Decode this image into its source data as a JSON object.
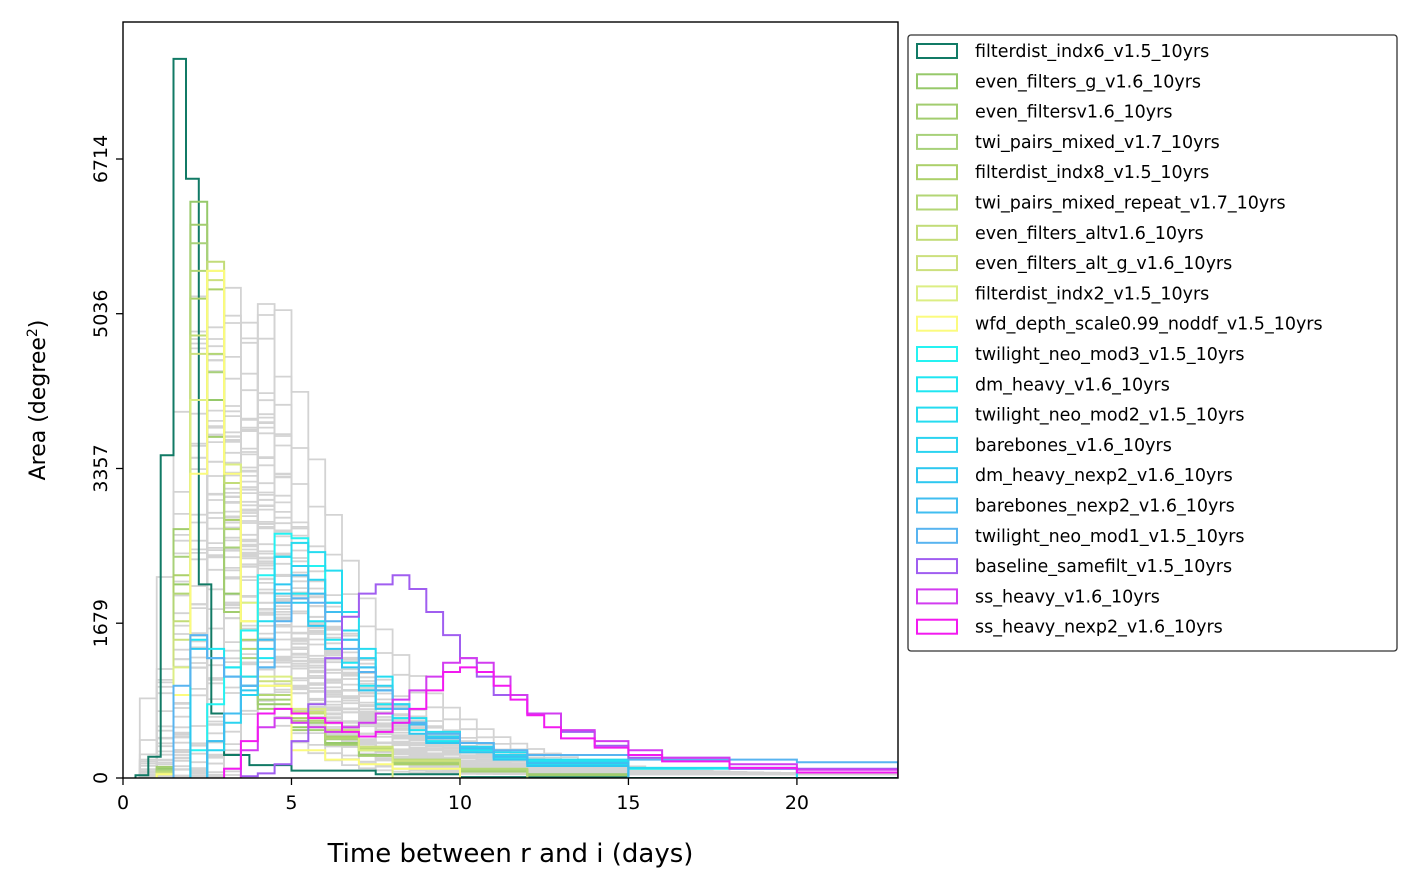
{
  "chart_data": {
    "type": "histogram",
    "xlabel": "Time between r and i (days)",
    "ylabel_main": "Area (degree",
    "ylabel_sup": "2",
    "ylabel_end": ")",
    "xlim": [
      0,
      23
    ],
    "ylim": [
      0,
      8200
    ],
    "xticks": [
      {
        "value": 0,
        "label": "0"
      },
      {
        "value": 5,
        "label": "5"
      },
      {
        "value": 10,
        "label": "10"
      },
      {
        "value": 15,
        "label": "15"
      },
      {
        "value": 20,
        "label": "20"
      }
    ],
    "yticks": [
      {
        "value": 0,
        "label": "0"
      },
      {
        "value": 1679,
        "label": "1679"
      },
      {
        "value": 3357,
        "label": "3357"
      },
      {
        "value": 5036,
        "label": "5036"
      },
      {
        "value": 6714,
        "label": "6714"
      }
    ],
    "grey_runs_note": "",
    "legend_position": "right, outside plot (upper)",
    "background_series_color": "#d3d3d3",
    "series": [
      {
        "name": "filterdist_indx6_v1.5_10yrs",
        "color": "#117a65",
        "edges": [
          0.37,
          0.75,
          1.12,
          1.5,
          1.87,
          2.25,
          2.62,
          3.0,
          3.75,
          5.0,
          7.5,
          10.0,
          15.0,
          23.0
        ],
        "values": [
          30,
          230,
          3500,
          7800,
          6500,
          2100,
          700,
          250,
          140,
          80,
          40,
          10,
          0
        ]
      },
      {
        "name": "even_filters_g_v1.6_10yrs",
        "color": "#96c96a",
        "edges": [
          1.0,
          1.5,
          2.0,
          2.5,
          3.0,
          3.5,
          4.0,
          5.0,
          6.0,
          7.0,
          8.0,
          10.0,
          12.0,
          15.0
        ],
        "values": [
          100,
          2100,
          6250,
          4100,
          2000,
          1100,
          800,
          550,
          380,
          250,
          160,
          80,
          40
        ]
      },
      {
        "name": "even_filtersv1.6_10yrs",
        "color": "#a2cd6f",
        "edges": [
          1.0,
          1.5,
          2.0,
          2.5,
          3.0,
          3.5,
          4.0,
          5.0,
          6.0,
          7.0,
          8.0,
          10.0,
          12.0,
          15.0
        ],
        "values": [
          120,
          2700,
          6000,
          3700,
          1800,
          1000,
          750,
          520,
          360,
          240,
          150,
          70,
          30
        ]
      },
      {
        "name": "twi_pairs_mixed_v1.7_10yrs",
        "color": "#a8d17a",
        "edges": [
          1.0,
          1.5,
          2.0,
          2.5,
          3.0,
          3.5,
          4.0,
          5.0,
          6.0,
          7.0,
          8.0,
          10.0,
          12.0
        ],
        "values": [
          80,
          2400,
          5800,
          4400,
          2500,
          1300,
          850,
          600,
          420,
          300,
          190,
          90
        ]
      },
      {
        "name": "filterdist_indx8_v1.5_10yrs",
        "color": "#acd06a",
        "edges": [
          1.0,
          1.5,
          2.0,
          2.5,
          3.0,
          3.5,
          4.0,
          5.0,
          6.0,
          7.0,
          8.0,
          10.0
        ],
        "values": [
          60,
          2200,
          5200,
          5300,
          2800,
          1500,
          900,
          650,
          450,
          300,
          150
        ]
      },
      {
        "name": "twi_pairs_mixed_repeat_v1.7_10yrs",
        "color": "#b3d675",
        "edges": [
          1.0,
          1.5,
          2.0,
          2.5,
          3.0,
          3.5,
          4.0,
          5.0,
          6.0,
          7.0,
          8.0,
          10.0,
          12.0
        ],
        "values": [
          70,
          2000,
          5500,
          4600,
          2700,
          1400,
          900,
          620,
          430,
          310,
          200,
          100
        ]
      },
      {
        "name": "even_filters_altv1.6_10yrs",
        "color": "#c2dc78",
        "edges": [
          1.0,
          1.5,
          2.0,
          2.5,
          3.0,
          3.5,
          4.0,
          5.0,
          6.0,
          7.0,
          8.0,
          10.0
        ],
        "values": [
          60,
          1700,
          4800,
          5600,
          3200,
          1600,
          1000,
          700,
          500,
          330,
          180
        ]
      },
      {
        "name": "even_filters_alt_g_v1.6_10yrs",
        "color": "#cce07e",
        "edges": [
          1.0,
          1.5,
          2.0,
          2.5,
          3.0,
          3.5,
          4.0,
          5.0,
          6.0,
          7.0,
          8.0,
          10.0
        ],
        "values": [
          50,
          1500,
          4600,
          5400,
          3400,
          1700,
          1050,
          720,
          520,
          340,
          190
        ]
      },
      {
        "name": "filterdist_indx2_v1.5_10yrs",
        "color": "#dcee84",
        "edges": [
          1.0,
          1.5,
          2.0,
          2.5,
          3.0,
          3.5,
          4.0,
          5.0,
          6.0,
          7.0,
          8.0
        ],
        "values": [
          40,
          1200,
          4100,
          5500,
          3400,
          1900,
          1100,
          750,
          500,
          300
        ]
      },
      {
        "name": "wfd_depth_scale0.99_noddf_v1.5_10yrs",
        "color": "#fbfb7e",
        "edges": [
          1.0,
          1.5,
          2.0,
          2.5,
          3.0,
          3.5,
          4.0,
          5.0,
          6.0,
          7.0,
          8.0,
          10.0
        ],
        "values": [
          40,
          900,
          3300,
          5500,
          3300,
          1700,
          1000,
          300,
          200,
          150,
          100
        ]
      },
      {
        "name": "twilight_neo_mod3_v1.5_10yrs",
        "color": "#25f2f2",
        "edges": [
          2.0,
          2.5,
          3.0,
          3.5,
          4.0,
          4.5,
          5.0,
          5.5,
          6.0,
          6.5,
          7.0,
          7.5,
          8.0,
          8.5,
          9.0,
          10.0,
          11.0,
          12.0,
          15.0,
          20.0
        ],
        "values": [
          300,
          800,
          1200,
          1600,
          2200,
          2650,
          2600,
          2300,
          1900,
          1500,
          1200,
          950,
          750,
          600,
          450,
          320,
          240,
          180,
          100
        ]
      },
      {
        "name": "dm_heavy_v1.6_10yrs",
        "color": "#1fe6f2",
        "edges": [
          2.0,
          2.5,
          3.0,
          3.5,
          4.0,
          4.5,
          5.0,
          5.5,
          6.0,
          6.5,
          7.0,
          7.5,
          8.0,
          8.5,
          9.0,
          10.0,
          11.0,
          12.0,
          15.0
        ],
        "values": [
          1500,
          1400,
          1200,
          1000,
          1300,
          2400,
          2000,
          1700,
          1500,
          1250,
          1000,
          800,
          650,
          520,
          400,
          300,
          220,
          150
        ]
      },
      {
        "name": "twilight_neo_mod2_v1.5_10yrs",
        "color": "#25dcf0",
        "edges": [
          2.5,
          3.0,
          3.5,
          4.0,
          4.5,
          5.0,
          5.5,
          6.0,
          6.5,
          7.0,
          7.5,
          8.0,
          8.5,
          9.0,
          10.0,
          11.0,
          12.0,
          15.0,
          20.0
        ],
        "values": [
          400,
          700,
          1100,
          1700,
          2400,
          2550,
          2450,
          2250,
          1800,
          1400,
          1100,
          800,
          650,
          500,
          380,
          280,
          200,
          110
        ]
      },
      {
        "name": "barebones_v1.6_10yrs",
        "color": "#2bd4f0",
        "edges": [
          2.5,
          3.0,
          3.5,
          4.0,
          4.5,
          5.0,
          5.5,
          6.0,
          6.5,
          7.0,
          7.5,
          8.0,
          8.5,
          9.0,
          10.0,
          11.0,
          12.0,
          15.0
        ],
        "values": [
          300,
          600,
          900,
          1400,
          2000,
          2300,
          2150,
          1900,
          1600,
          1300,
          1000,
          800,
          600,
          450,
          340,
          250,
          170
        ]
      },
      {
        "name": "dm_heavy_nexp2_v1.6_10yrs",
        "color": "#2ec8f0",
        "edges": [
          2.0,
          2.5,
          3.0,
          3.5,
          4.0,
          4.5,
          5.0,
          5.5,
          6.0,
          6.5,
          7.0,
          7.5,
          8.0,
          8.5,
          9.0,
          10.0,
          11.0,
          12.0,
          15.0
        ],
        "values": [
          1400,
          1300,
          1100,
          950,
          1200,
          2100,
          1900,
          1650,
          1400,
          1200,
          950,
          750,
          600,
          480,
          380,
          280,
          200,
          130
        ]
      },
      {
        "name": "barebones_nexp2_v1.6_10yrs",
        "color": "#40bef0",
        "edges": [
          2.5,
          3.0,
          3.5,
          4.0,
          4.5,
          5.0,
          5.5,
          6.0,
          6.5,
          7.0,
          7.5,
          8.0,
          8.5,
          9.0,
          10.0,
          11.0,
          12.0,
          15.0
        ],
        "values": [
          400,
          700,
          1000,
          1500,
          1900,
          2200,
          2000,
          1800,
          1500,
          1200,
          950,
          750,
          580,
          430,
          320,
          230,
          160
        ]
      },
      {
        "name": "twilight_neo_mod1_v1.5_10yrs",
        "color": "#58b4f0",
        "edges": [
          1.5,
          2.0,
          2.5,
          3.0,
          3.5,
          4.0,
          4.5,
          5.0,
          5.5,
          6.0,
          6.5,
          7.0,
          7.5,
          8.0,
          8.5,
          9.0,
          10.0,
          11.0,
          12.0,
          15.0,
          20.0,
          23.0
        ],
        "values": [
          1000,
          1550,
          1300,
          1100,
          1000,
          1200,
          1700,
          1950,
          1900,
          1700,
          1400,
          1150,
          950,
          750,
          600,
          480,
          380,
          300,
          250,
          200,
          170
        ]
      },
      {
        "name": "baseline_samefilt_v1.5_10yrs",
        "color": "#a05ef0",
        "edges": [
          3.5,
          4.0,
          4.5,
          5.0,
          5.5,
          6.0,
          6.5,
          7.0,
          7.5,
          8.0,
          8.5,
          9.0,
          9.5,
          10.0,
          10.5,
          11.0,
          12.0,
          13.0,
          14.0,
          15.0,
          18.0,
          23.0
        ],
        "values": [
          20,
          50,
          150,
          400,
          800,
          1300,
          1750,
          2000,
          2100,
          2200,
          2050,
          1800,
          1550,
          1300,
          1100,
          900,
          700,
          500,
          350,
          220,
          100
        ]
      },
      {
        "name": "ss_heavy_v1.6_10yrs",
        "color": "#d23cf0",
        "edges": [
          3.5,
          4.0,
          4.5,
          5.0,
          5.5,
          6.0,
          6.5,
          7.0,
          7.5,
          8.0,
          8.5,
          9.0,
          9.5,
          10.0,
          10.5,
          11.0,
          11.5,
          12.0,
          13.0,
          14.0,
          15.0,
          16.0,
          18.0,
          20.0,
          23.0
        ],
        "values": [
          300,
          550,
          650,
          600,
          550,
          500,
          550,
          600,
          700,
          850,
          950,
          1100,
          1250,
          1300,
          1250,
          1100,
          900,
          700,
          520,
          400,
          300,
          220,
          150,
          90
        ]
      },
      {
        "name": "ss_heavy_nexp2_v1.6_10yrs",
        "color": "#f21af0",
        "edges": [
          3.0,
          3.5,
          4.0,
          4.5,
          5.0,
          5.5,
          6.0,
          6.5,
          7.0,
          7.5,
          8.0,
          8.5,
          9.0,
          9.5,
          10.0,
          10.5,
          11.0,
          11.5,
          12.0,
          12.5,
          13.0,
          14.0,
          15.0,
          16.0,
          18.0,
          20.0,
          23.0
        ],
        "values": [
          100,
          400,
          700,
          750,
          700,
          650,
          600,
          500,
          450,
          500,
          600,
          750,
          950,
          1150,
          1200,
          1150,
          1000,
          850,
          680,
          550,
          430,
          330,
          250,
          180,
          110,
          60
        ]
      }
    ]
  }
}
